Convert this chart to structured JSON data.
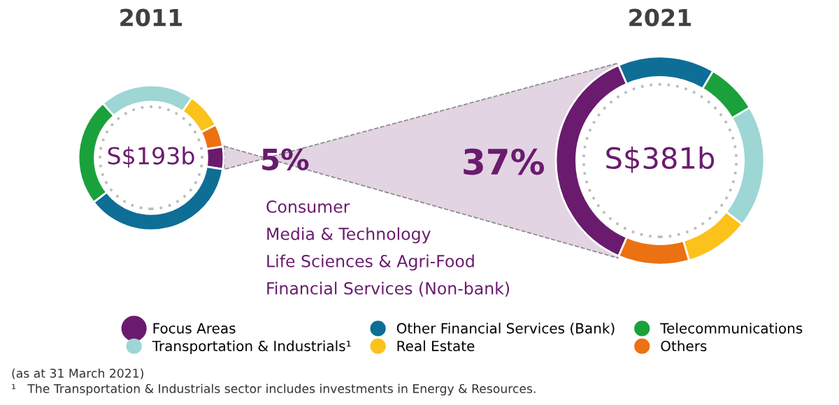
{
  "chart_data": [
    {
      "type": "donut",
      "title": "2011",
      "categories": [
        "Focus Areas",
        "Other Financial Services (Bank)",
        "Telecommunications",
        "Transportation & Industrials¹",
        "Real Estate",
        "Others"
      ],
      "values": [
        5,
        37,
        24,
        21,
        8,
        5
      ],
      "colors": [
        "#6a1b6e",
        "#0e6e96",
        "#1aa13c",
        "#9dd6d4",
        "#fbc21b",
        "#ec7112"
      ],
      "value_labels": [
        "5%",
        null,
        null,
        null,
        null,
        null
      ],
      "legend": "bottom",
      "annotations": [
        "S$193b",
        "Consumer",
        "Media & Technology",
        "Life Sciences & Agri-Food",
        "Financial Services (Non-bank)",
        "(as at 31 March 2021)",
        "¹   The Transportation & Industrials sector includes investments in Energy & Resources."
      ]
    },
    {
      "type": "donut",
      "title": "2021",
      "values": [
        37,
        15,
        8,
        19,
        10,
        11
      ],
      "colors": [
        "#6a1b6e",
        "#0e6e96",
        "#1aa13c",
        "#9dd6d4",
        "#fbc21b",
        "#ec7112"
      ],
      "value_labels": [
        "37%",
        null,
        null,
        null,
        null,
        null
      ],
      "annotations": [
        "S$381b"
      ]
    }
  ]
}
